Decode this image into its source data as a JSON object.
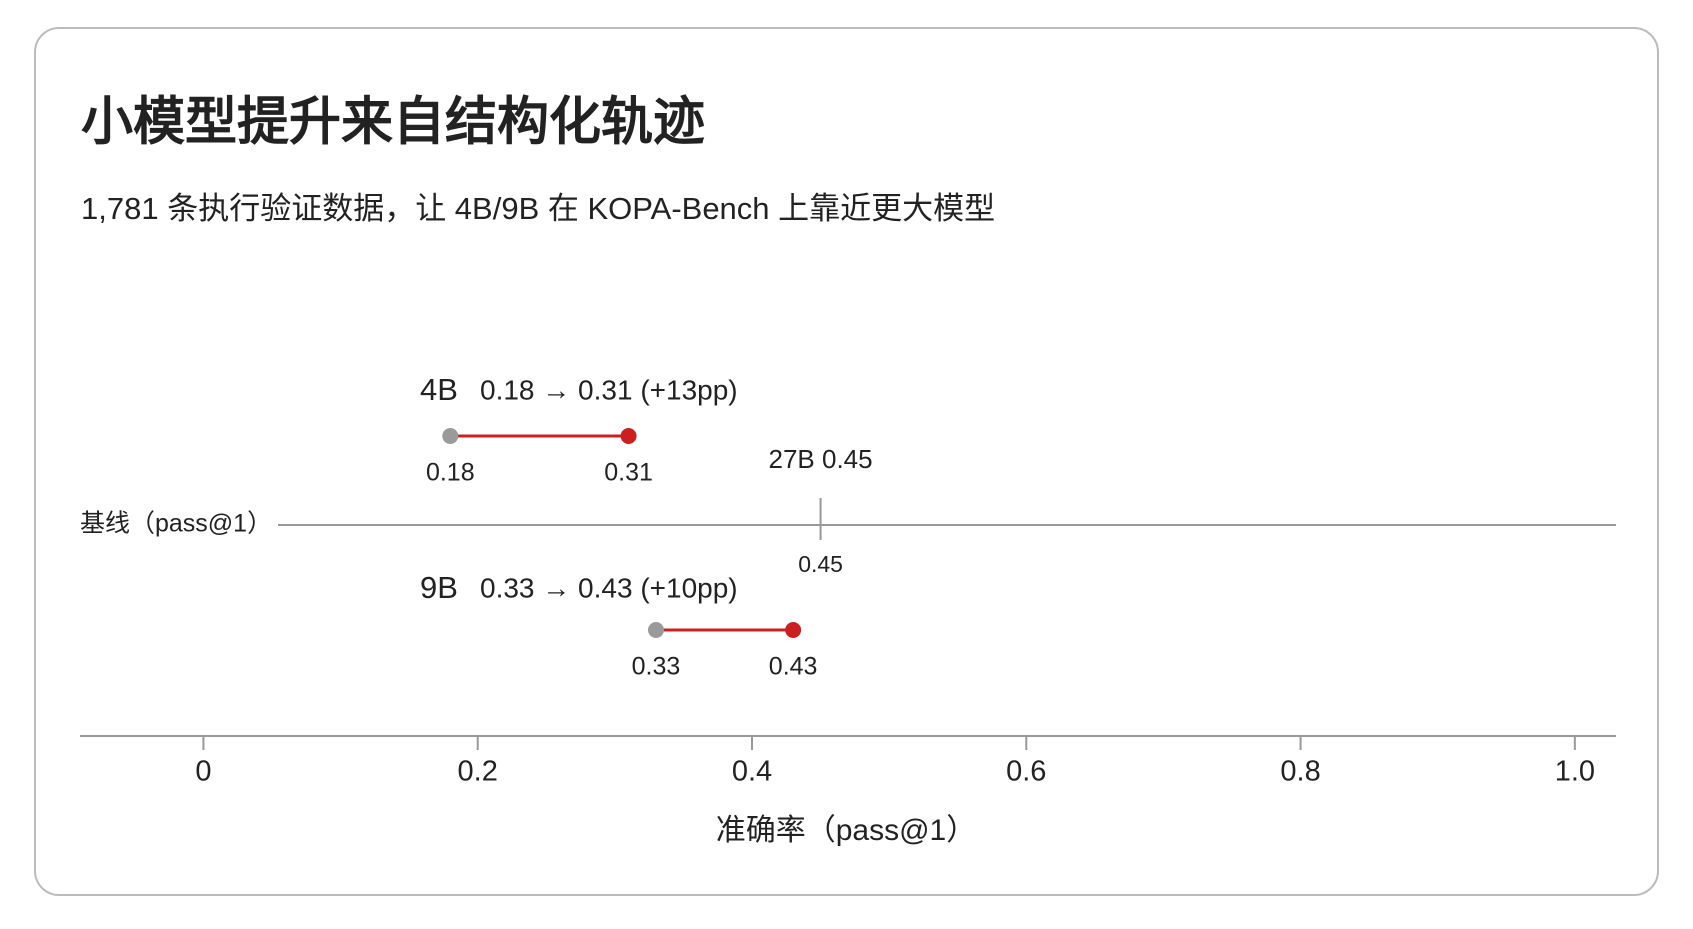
{
  "chart_data": {
    "type": "dumbbell",
    "title": "小模型提升来自结构化轨迹",
    "subtitle": "1,781 条执行验证数据，让 4B/9B 在 KOPA-Bench 上靠近更大模型",
    "x_label": "准确率（pass@1）",
    "categories": [
      "4B",
      "9B"
    ],
    "annotations": [
      "0.18 → 0.31 (+13pp)",
      "0.33 → 0.43 (+10pp)"
    ],
    "start": {
      "color": "#9a9a9a",
      "values": [
        0.18,
        0.33
      ]
    },
    "end": {
      "color": "#cc2020",
      "values": [
        0.31,
        0.43
      ]
    },
    "baseline": {
      "label": "基线（pass@1）",
      "reference_label": "27B 0.45",
      "value": 0.45
    },
    "xlim": [
      -0.09,
      1.03
    ],
    "xticks": [
      0,
      0.2,
      0.4,
      0.6,
      0.8,
      {
        "value": 1,
        "label": "1.0"
      }
    ]
  }
}
